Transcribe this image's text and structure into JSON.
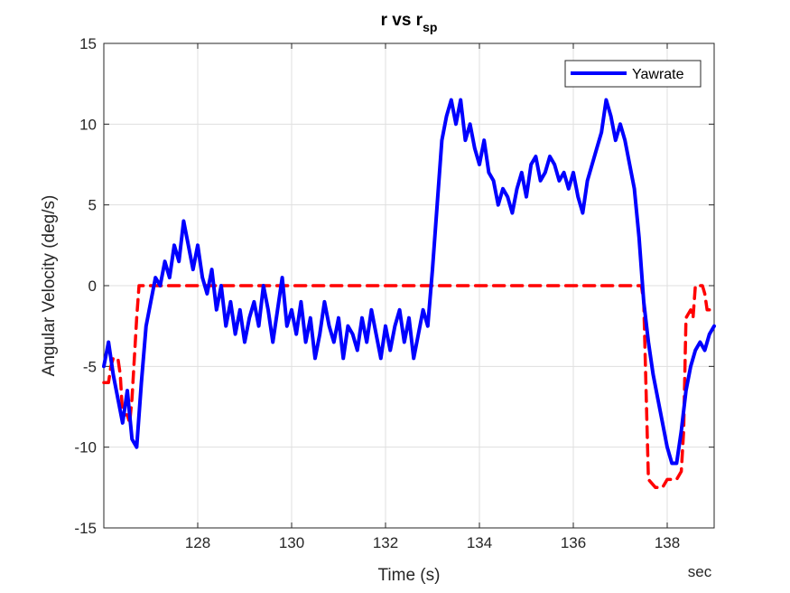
{
  "chart_data": {
    "type": "line",
    "title": "r vs r",
    "title_subscript": "sp",
    "xlabel": "Time (s)",
    "ylabel": "Angular Velocity (deg/s)",
    "x_unit_label": "sec",
    "xlim": [
      126.0,
      139.0
    ],
    "ylim": [
      -15,
      15
    ],
    "xticks": [
      128,
      130,
      132,
      134,
      136,
      138
    ],
    "yticks": [
      -15,
      -10,
      -5,
      0,
      5,
      10,
      15
    ],
    "grid": true,
    "legend_position": "top-right",
    "series": [
      {
        "name": "Yawrate",
        "color": "#0000ff",
        "style": "solid",
        "x": [
          126.0,
          126.1,
          126.2,
          126.3,
          126.4,
          126.5,
          126.6,
          126.7,
          126.8,
          126.9,
          127.0,
          127.1,
          127.2,
          127.3,
          127.4,
          127.5,
          127.6,
          127.7,
          127.8,
          127.9,
          128.0,
          128.1,
          128.2,
          128.3,
          128.4,
          128.5,
          128.6,
          128.7,
          128.8,
          128.9,
          129.0,
          129.1,
          129.2,
          129.3,
          129.4,
          129.5,
          129.6,
          129.7,
          129.8,
          129.9,
          130.0,
          130.1,
          130.2,
          130.3,
          130.4,
          130.5,
          130.6,
          130.7,
          130.8,
          130.9,
          131.0,
          131.1,
          131.2,
          131.3,
          131.4,
          131.5,
          131.6,
          131.7,
          131.8,
          131.9,
          132.0,
          132.1,
          132.2,
          132.3,
          132.4,
          132.5,
          132.6,
          132.7,
          132.8,
          132.9,
          133.0,
          133.1,
          133.2,
          133.3,
          133.4,
          133.5,
          133.6,
          133.7,
          133.8,
          133.9,
          134.0,
          134.1,
          134.2,
          134.3,
          134.4,
          134.5,
          134.6,
          134.7,
          134.8,
          134.9,
          135.0,
          135.1,
          135.2,
          135.3,
          135.4,
          135.5,
          135.6,
          135.7,
          135.8,
          135.9,
          136.0,
          136.1,
          136.2,
          136.3,
          136.4,
          136.5,
          136.6,
          136.7,
          136.8,
          136.9,
          137.0,
          137.1,
          137.2,
          137.3,
          137.4,
          137.5,
          137.6,
          137.7,
          137.8,
          137.9,
          138.0,
          138.1,
          138.2,
          138.3,
          138.4,
          138.5,
          138.6,
          138.7,
          138.8,
          138.9,
          139.0
        ],
        "y": [
          -5.0,
          -3.5,
          -5.5,
          -7.0,
          -8.5,
          -6.5,
          -9.5,
          -10.0,
          -6.0,
          -2.5,
          -1.0,
          0.5,
          0.0,
          1.5,
          0.5,
          2.5,
          1.5,
          4.0,
          2.5,
          1.0,
          2.5,
          0.5,
          -0.5,
          1.0,
          -1.5,
          0.0,
          -2.5,
          -1.0,
          -3.0,
          -1.5,
          -3.5,
          -2.0,
          -1.0,
          -2.5,
          0.0,
          -1.5,
          -3.5,
          -1.5,
          0.5,
          -2.5,
          -1.5,
          -3.0,
          -1.0,
          -3.5,
          -2.0,
          -4.5,
          -3.0,
          -1.0,
          -2.5,
          -3.5,
          -2.0,
          -4.5,
          -2.5,
          -3.0,
          -4.0,
          -2.0,
          -3.5,
          -1.5,
          -3.0,
          -4.5,
          -2.5,
          -4.0,
          -2.5,
          -1.5,
          -3.5,
          -2.0,
          -4.5,
          -3.0,
          -1.5,
          -2.5,
          1.0,
          5.0,
          9.0,
          10.5,
          11.5,
          10.0,
          11.5,
          9.0,
          10.0,
          8.5,
          7.5,
          9.0,
          7.0,
          6.5,
          5.0,
          6.0,
          5.5,
          4.5,
          6.0,
          7.0,
          5.5,
          7.5,
          8.0,
          6.5,
          7.0,
          8.0,
          7.5,
          6.5,
          7.0,
          6.0,
          7.0,
          5.5,
          4.5,
          6.5,
          7.5,
          8.5,
          9.5,
          11.5,
          10.5,
          9.0,
          10.0,
          9.0,
          7.5,
          6.0,
          3.0,
          -1.0,
          -3.5,
          -5.5,
          -7.0,
          -8.5,
          -10.0,
          -11.0,
          -11.0,
          -9.0,
          -6.5,
          -5.0,
          -4.0,
          -3.5,
          -4.0,
          -3.0,
          -2.5
        ]
      },
      {
        "name": "",
        "color": "#ff0000",
        "style": "dashed",
        "x": [
          126.0,
          126.1,
          126.15,
          126.2,
          126.3,
          126.35,
          126.4,
          126.5,
          126.55,
          126.6,
          126.65,
          126.7,
          126.75,
          126.8,
          137.45,
          137.5,
          137.6,
          137.75,
          137.9,
          138.0,
          138.1,
          138.2,
          138.3,
          138.35,
          138.4,
          138.5,
          138.55,
          138.6,
          138.75,
          138.8,
          138.85,
          139.0
        ],
        "y": [
          -6.0,
          -6.0,
          -5.0,
          -4.5,
          -4.5,
          -5.5,
          -8.0,
          -8.0,
          -8.5,
          -7.0,
          -4.5,
          -2.0,
          0.0,
          0.0,
          0.0,
          -1.0,
          -12.0,
          -12.5,
          -12.5,
          -12.0,
          -12.0,
          -12.0,
          -11.5,
          -9.0,
          -2.0,
          -1.5,
          -2.0,
          0.0,
          0.0,
          -0.5,
          -1.5,
          -1.5
        ]
      }
    ]
  }
}
